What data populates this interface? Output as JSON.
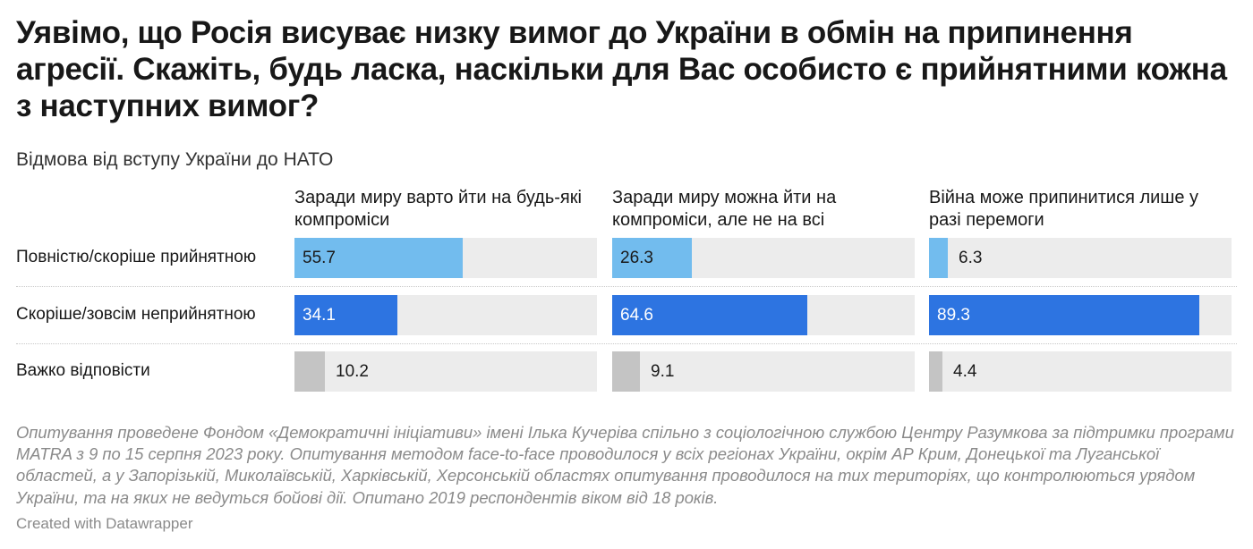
{
  "title": "Уявімо, що Росія висуває низку вимог до України в обмін на припинення агресії. Скажіть, будь ласка, наскільки для Вас особисто є прийнятними кожна з наступних вимог?",
  "subtitle": "Відмова від вступу України до НАТО",
  "notes": "Опитування проведене Фондом «Демократичні ініціативи» імені Ілька Кучеріва спільно з соціологічною службою Центру Разумкова за підтримки програми MATRA з 9 по 15 серпня 2023 року. Опитування методом face-to-face проводилося у всіх регіонах України, окрім АР Крим, Донецької та Луганської областей, а у Запорізькій, Миколаївській, Харківській, Херсонській областях опитування проводилося на тих територіях, що контролюються урядом України, та на яких не ведуться бойові дії. Опитано 2019 респондентів віком від 18 років.",
  "byline": "Created with Datawrapper",
  "chart_data": {
    "type": "bar",
    "layout": "split-bars",
    "title": "Уявімо, що Росія висуває низку вимог до України в обмін на припинення агресії. Скажіть, будь ласка, наскільки для Вас особисто є прийнятними кожна з наступних вимог?",
    "subtitle": "Відмова від вступу України до НАТО",
    "columns": [
      "Заради миру варто йти на будь-які компроміси",
      "Заради миру можна йти на компроміси, але не на всі",
      "Війна може припинитися лише у разі перемоги"
    ],
    "categories": [
      "Повністю/скоріше прийнятною",
      "Скоріше/зовсім неприйнятною",
      "Важко відповісти"
    ],
    "values": [
      [
        55.7,
        26.3,
        6.3
      ],
      [
        34.1,
        64.6,
        89.3
      ],
      [
        10.2,
        9.1,
        4.4
      ]
    ],
    "xlim": [
      0,
      100
    ],
    "colors": [
      "#72bcee",
      "#2d74e1",
      "#c4c4c4"
    ]
  }
}
